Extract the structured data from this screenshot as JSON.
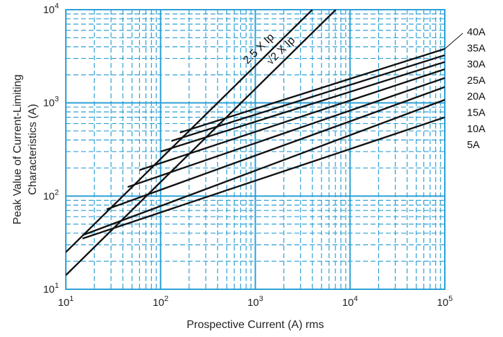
{
  "chart_data": {
    "type": "line",
    "x_scale": "log",
    "y_scale": "log",
    "xlim": [
      10,
      100000
    ],
    "ylim": [
      10,
      10000
    ],
    "xlabel": "Prospective Current (A) rms",
    "ylabel_lines": [
      "Peak Value of Current-Limiting",
      "Characteristics (A)"
    ],
    "x_ticks": [
      {
        "value": 10,
        "base": "10",
        "exp": "1"
      },
      {
        "value": 100,
        "base": "10",
        "exp": "2"
      },
      {
        "value": 1000,
        "base": "10",
        "exp": "3"
      },
      {
        "value": 10000,
        "base": "10",
        "exp": "4"
      },
      {
        "value": 100000,
        "base": "10",
        "exp": "5"
      }
    ],
    "y_ticks": [
      {
        "value": 10,
        "base": "10",
        "exp": "1"
      },
      {
        "value": 100,
        "base": "10",
        "exp": "2"
      },
      {
        "value": 1000,
        "base": "10",
        "exp": "3"
      },
      {
        "value": 10000,
        "base": "10",
        "exp": "4"
      }
    ],
    "grid": true,
    "grid_color": "#2a9fd6",
    "line_color": "#111111",
    "reference_lines": [
      {
        "id": "ref-2-5",
        "label": "2.5 X Ip",
        "factor": 2.5,
        "x": [
          10,
          4000
        ]
      },
      {
        "id": "ref-sqrt2",
        "label": "√2 X Ip",
        "factor": 1.414,
        "x": [
          10,
          7071
        ]
      }
    ],
    "series": [
      {
        "name": "40A",
        "x": [
          160,
          100000
        ],
        "y": [
          480,
          3800
        ]
      },
      {
        "name": "35A",
        "x": [
          130,
          100000
        ],
        "y": [
          390,
          3250
        ]
      },
      {
        "name": "30A",
        "x": [
          100,
          100000
        ],
        "y": [
          300,
          2750
        ]
      },
      {
        "name": "25A",
        "x": [
          60,
          100000
        ],
        "y": [
          190,
          2300
        ]
      },
      {
        "name": "20A",
        "x": [
          45,
          100000
        ],
        "y": [
          125,
          1850
        ]
      },
      {
        "name": "15A",
        "x": [
          27,
          100000
        ],
        "y": [
          72,
          1480
        ]
      },
      {
        "name": "10A",
        "x": [
          15,
          100000
        ],
        "y": [
          38,
          1080
        ]
      },
      {
        "name": "5A",
        "x": [
          15,
          100000
        ],
        "y": [
          35,
          700
        ]
      }
    ],
    "legend_order": [
      "40A",
      "35A",
      "30A",
      "25A",
      "20A",
      "15A",
      "10A",
      "5A"
    ]
  }
}
